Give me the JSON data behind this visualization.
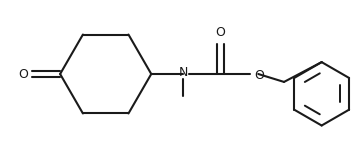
{
  "background": "#ffffff",
  "line_color": "#1a1a1a",
  "line_width": 1.5,
  "fig_width": 3.58,
  "fig_height": 1.48,
  "dpi": 100,
  "xlim": [
    0,
    358
  ],
  "ylim": [
    0,
    148
  ]
}
